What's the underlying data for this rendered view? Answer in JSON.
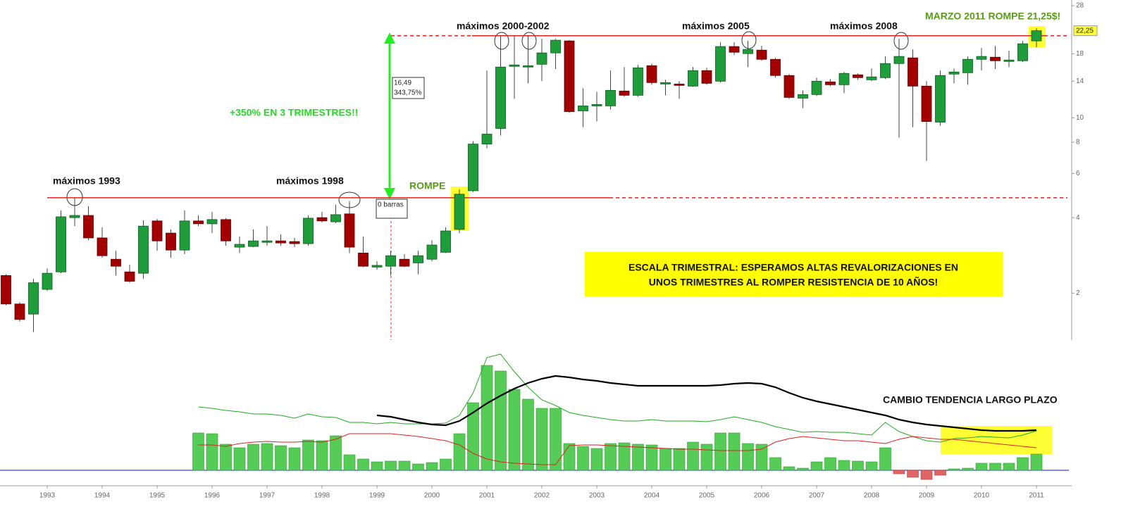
{
  "chart_data": {
    "type": "candlestick",
    "log_scale": true,
    "ylim": [
      1.3,
      29.5
    ],
    "yticks": [
      2,
      4,
      6,
      8,
      10,
      14,
      18,
      28
    ],
    "up_color": "#1f9d3a",
    "down_color": "#a30000",
    "categories": [
      null,
      null,
      null,
      "1993",
      null,
      null,
      null,
      "1994",
      null,
      null,
      null,
      "1995",
      null,
      null,
      null,
      "1996",
      null,
      null,
      null,
      "1997",
      null,
      null,
      null,
      "1998",
      null,
      null,
      null,
      "1999",
      null,
      null,
      null,
      "2000",
      null,
      null,
      null,
      "2001",
      null,
      null,
      null,
      "2002",
      null,
      null,
      null,
      "2003",
      null,
      null,
      null,
      "2004",
      null,
      null,
      null,
      "2005",
      null,
      null,
      null,
      "2006",
      null,
      null,
      null,
      "2007",
      null,
      null,
      null,
      "2008",
      null,
      null,
      null,
      "2009",
      null,
      null,
      null,
      "2010",
      null,
      null,
      null,
      "2011"
    ],
    "open": [
      2.35,
      1.81,
      1.65,
      2.07,
      2.43,
      4.0,
      4.08,
      3.32,
      2.73,
      2.43,
      2.4,
      3.88,
      3.47,
      2.97,
      3.88,
      3.78,
      3.93,
      3.05,
      3.07,
      3.19,
      3.23,
      3.21,
      3.15,
      4.0,
      3.85,
      4.14,
      2.89,
      2.54,
      2.56,
      2.73,
      2.64,
      2.73,
      2.91,
      3.59,
      5.12,
      7.86,
      9.07,
      16.04,
      15.94,
      16.35,
      18.15,
      20.26,
      10.66,
      11.16,
      11.16,
      12.79,
      12.3,
      16.14,
      13.64,
      13.64,
      13.38,
      15.43,
      14.0,
      19.24,
      18.03,
      18.62,
      17.11,
      14.75,
      11.98,
      12.38,
      13.91,
      13.55,
      14.84,
      14.18,
      14.46,
      16.46,
      17.34,
      13.38,
      9.61,
      14.94,
      15.13,
      17.11,
      17.45,
      16.78,
      16.89,
      20.26
    ],
    "high": [
      2.38,
      1.84,
      2.28,
      2.51,
      4.27,
      4.8,
      4.44,
      3.66,
      2.95,
      2.59,
      3.9,
      3.95,
      3.59,
      4.27,
      4.08,
      4.22,
      3.98,
      3.36,
      3.59,
      3.7,
      3.43,
      3.32,
      4.08,
      4.22,
      4.5,
      4.65,
      3.36,
      2.68,
      2.95,
      2.86,
      2.95,
      3.25,
      3.66,
      5.19,
      8.07,
      15.43,
      21.34,
      21.34,
      21.34,
      20.66,
      20.66,
      20.39,
      13.12,
      12.7,
      15.43,
      15.94,
      16.25,
      16.46,
      14.18,
      14.0,
      15.94,
      15.83,
      20.0,
      20.0,
      20.26,
      19.36,
      17.34,
      14.94,
      12.87,
      14.46,
      14.27,
      15.23,
      15.04,
      15.73,
      17.57,
      20.66,
      18.74,
      14.0,
      15.43,
      15.73,
      17.57,
      18.99,
      19.36,
      18.5,
      20.26,
      22.76
    ],
    "low": [
      1.79,
      1.54,
      1.4,
      2.04,
      2.4,
      3.7,
      3.25,
      2.77,
      2.35,
      2.2,
      2.28,
      2.95,
      2.77,
      2.86,
      3.7,
      3.47,
      3.09,
      2.89,
      3.05,
      3.09,
      3.09,
      3.05,
      3.09,
      3.83,
      3.8,
      2.89,
      2.54,
      2.48,
      2.35,
      2.54,
      2.38,
      2.68,
      2.89,
      3.47,
      5.06,
      7.56,
      8.5,
      11.91,
      13.73,
      14.0,
      15.63,
      10.46,
      9.18,
      9.67,
      10.8,
      12.14,
      12.14,
      13.55,
      12.3,
      11.91,
      13.29,
      13.55,
      13.82,
      17.8,
      15.94,
      16.89,
      14.46,
      11.91,
      10.94,
      12.22,
      13.38,
      12.54,
      14.18,
      14.0,
      14.27,
      8.33,
      9.18,
      6.73,
      9.3,
      13.73,
      13.55,
      15.43,
      15.63,
      15.94,
      16.68,
      19.11
    ],
    "close": [
      1.81,
      1.57,
      2.2,
      2.4,
      4.03,
      4.08,
      3.32,
      2.82,
      2.56,
      2.23,
      3.7,
      3.23,
      2.97,
      3.88,
      3.78,
      3.93,
      3.23,
      3.13,
      3.23,
      3.23,
      3.17,
      3.15,
      3.98,
      3.88,
      4.11,
      3.05,
      2.56,
      2.58,
      2.82,
      2.56,
      2.82,
      3.11,
      3.54,
      4.96,
      7.86,
      8.61,
      15.94,
      16.25,
      16.14,
      18.15,
      20.39,
      10.59,
      11.16,
      11.3,
      12.87,
      12.3,
      15.83,
      13.82,
      13.82,
      13.55,
      15.43,
      13.73,
      19.24,
      18.26,
      18.74,
      17.11,
      14.75,
      12.06,
      12.38,
      14.0,
      13.55,
      15.04,
      14.46,
      14.56,
      16.46,
      17.57,
      13.38,
      9.67,
      14.75,
      15.23,
      17.11,
      17.57,
      16.89,
      17.0,
      19.74,
      22.25
    ],
    "price_label": {
      "value": 22.25,
      "label": "22,25"
    },
    "resistance": [
      4.8,
      21.25
    ],
    "annotations": {
      "max1993": "máximos 1993",
      "max1998": "máximos 1998",
      "max2000": "máximos 2000-2002",
      "max2005": "máximos 2005",
      "max2008": "máximos 2008",
      "marzo": "MARZO 2011 ROMPE 21,25$!",
      "rompe": "ROMPE",
      "gain": "+350% EN 3 TRIMESTRES!!",
      "diff": "16,49",
      "pct": "343,75%",
      "bars": "0 barras",
      "box1": "ESCALA TRIMESTRAL: ESPERAMOS ALTAS REVALORIZACIONES  EN",
      "box2": "UNOS TRIMESTRES AL ROMPER RESISTENCIA DE 10 AÑOS!",
      "trend": "CAMBIO TENDENCIA LARGO PLAZO"
    },
    "indicator": {
      "type": "bar",
      "ylim": [
        -25,
        178
      ],
      "color": "#55cc55",
      "negative_color": "#e06666",
      "values": [
        null,
        null,
        null,
        null,
        null,
        null,
        null,
        null,
        null,
        null,
        null,
        null,
        null,
        null,
        53,
        52,
        37,
        32,
        37,
        38,
        35,
        32,
        43,
        42,
        49,
        22,
        16,
        12,
        13,
        13,
        9,
        11,
        16,
        52,
        96,
        149,
        141,
        115,
        101,
        88,
        88,
        38,
        34,
        31,
        38,
        39,
        37,
        36,
        31,
        31,
        40,
        37,
        53,
        53,
        38,
        37,
        18,
        5,
        3,
        12,
        18,
        14,
        13,
        12,
        32,
        -5,
        -10,
        -13,
        -7,
        2,
        3,
        10,
        10,
        10,
        18,
        23
      ],
      "lines": [
        {
          "color": "#22aa22",
          "values": [
            null,
            null,
            null,
            null,
            null,
            null,
            null,
            null,
            null,
            null,
            null,
            null,
            null,
            null,
            90,
            88,
            85,
            83,
            80,
            80,
            78,
            74,
            80,
            76,
            75,
            68,
            68,
            66,
            68,
            66,
            66,
            66,
            67,
            78,
            110,
            160,
            165,
            140,
            118,
            100,
            92,
            82,
            78,
            75,
            72,
            70,
            70,
            72,
            70,
            70,
            70,
            69,
            72,
            76,
            72,
            68,
            62,
            58,
            54,
            55,
            54,
            54,
            52,
            50,
            68,
            55,
            48,
            42,
            40,
            45,
            46,
            48,
            47,
            46,
            50,
            56
          ]
        },
        {
          "color": "#dd2222",
          "values": [
            null,
            null,
            null,
            null,
            null,
            null,
            null,
            null,
            null,
            null,
            null,
            null,
            null,
            null,
            36,
            36,
            34,
            38,
            40,
            41,
            40,
            40,
            41,
            40,
            44,
            52,
            52,
            52,
            52,
            50,
            48,
            45,
            42,
            36,
            24,
            16,
            12,
            10,
            9,
            8,
            8,
            35,
            36,
            36,
            35,
            34,
            33,
            32,
            31,
            30,
            30,
            29,
            28,
            28,
            28,
            30,
            40,
            45,
            48,
            46,
            44,
            42,
            42,
            40,
            38,
            44,
            48,
            46,
            44,
            44,
            42,
            40,
            38,
            36,
            34,
            32
          ]
        },
        {
          "color": "#000000",
          "values": [
            null,
            null,
            null,
            null,
            null,
            null,
            null,
            null,
            null,
            null,
            null,
            null,
            null,
            null,
            null,
            null,
            null,
            null,
            null,
            null,
            null,
            null,
            null,
            null,
            null,
            null,
            null,
            78,
            76,
            72,
            68,
            65,
            64,
            70,
            82,
            95,
            106,
            116,
            124,
            130,
            134,
            132,
            129,
            127,
            124,
            122,
            120,
            120,
            120,
            120,
            120,
            120,
            121,
            123,
            124,
            123,
            118,
            110,
            103,
            98,
            94,
            90,
            86,
            82,
            78,
            72,
            68,
            65,
            63,
            61,
            59,
            57,
            56,
            56,
            56,
            57
          ]
        }
      ]
    }
  }
}
